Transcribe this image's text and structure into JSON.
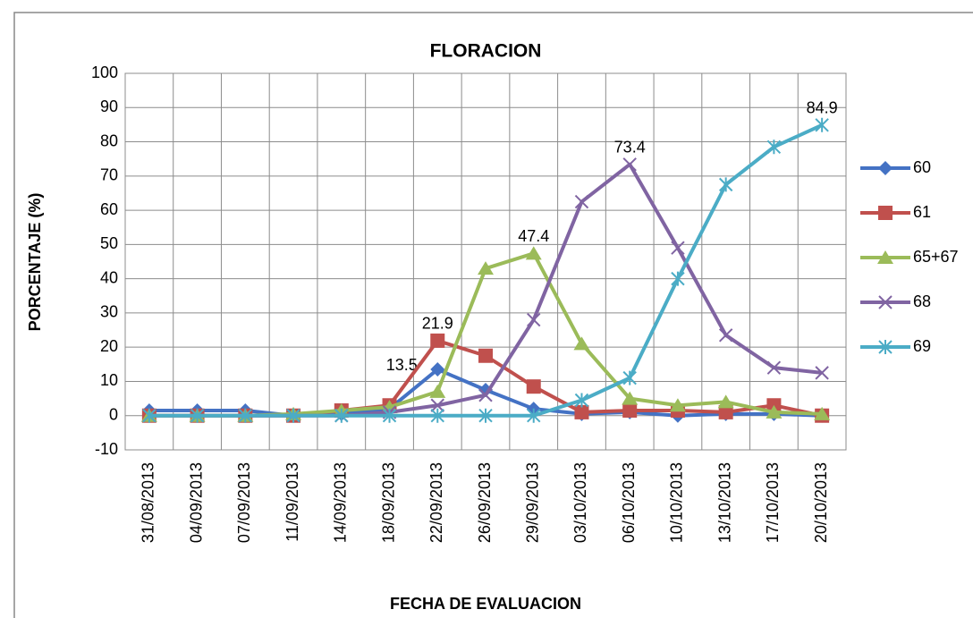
{
  "chart_data": {
    "type": "line",
    "title": "FLORACION",
    "xlabel": "FECHA DE EVALUACION",
    "ylabel": "PORCENTAJE (%)",
    "categories": [
      "31/08/2013",
      "04/09/2013",
      "07/09/2013",
      "11/09/2013",
      "14/09/2013",
      "18/09/2013",
      "22/09/2013",
      "26/09/2013",
      "29/09/2013",
      "03/10/2013",
      "06/10/2013",
      "10/10/2013",
      "13/10/2013",
      "17/10/2013",
      "20/10/2013"
    ],
    "series": [
      {
        "name": "60",
        "color": "#4472c4",
        "marker": "diamond",
        "label_indices": [
          6
        ],
        "label_side": "left",
        "values": [
          1.5,
          1.5,
          1.5,
          0,
          0.5,
          2,
          13.5,
          7.5,
          2,
          0.5,
          1,
          0,
          0.5,
          0.5,
          0
        ]
      },
      {
        "name": "61",
        "color": "#c0504d",
        "marker": "square",
        "label_indices": [
          6
        ],
        "label_side": "top",
        "values": [
          0,
          0,
          0,
          0,
          1.5,
          3,
          21.9,
          17.5,
          8.5,
          1,
          1.5,
          1.5,
          1,
          3,
          0
        ]
      },
      {
        "name": "65+67",
        "color": "#9bbb59",
        "marker": "triangle",
        "label_indices": [
          8
        ],
        "label_side": "top",
        "values": [
          0,
          0,
          0,
          0.5,
          1.5,
          2.5,
          7,
          43,
          47.4,
          21,
          5,
          3,
          4,
          1,
          0.5
        ]
      },
      {
        "name": "68",
        "color": "#8064a2",
        "marker": "x",
        "label_indices": [
          10
        ],
        "label_side": "top",
        "values": [
          0,
          0,
          0,
          0,
          0,
          1,
          3,
          6,
          28,
          62.5,
          73.4,
          49,
          23.5,
          14,
          12.5
        ]
      },
      {
        "name": "69",
        "color": "#4bacc6",
        "marker": "star",
        "label_indices": [
          14
        ],
        "label_side": "top",
        "values": [
          0,
          0,
          0,
          0,
          0,
          0,
          0,
          0,
          0,
          4.5,
          11,
          40,
          67.5,
          78.5,
          84.9
        ]
      }
    ],
    "ylim": [
      -10,
      100
    ],
    "yticks": [
      -10,
      0,
      10,
      20,
      30,
      40,
      50,
      60,
      70,
      80,
      90,
      100
    ],
    "grid": true,
    "legend": "right"
  }
}
